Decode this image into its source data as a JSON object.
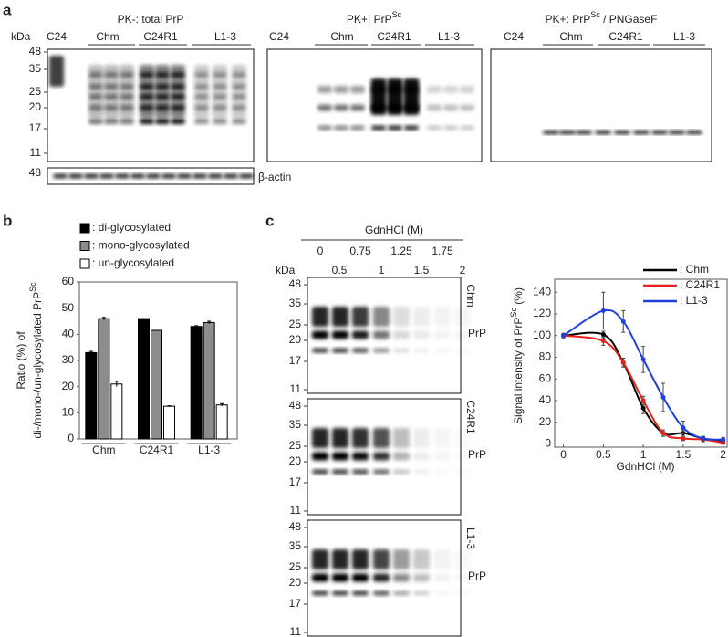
{
  "panel_a": {
    "label": "a",
    "kda": "kDa",
    "markers": [
      "48",
      "35",
      "25",
      "20",
      "17",
      "11"
    ],
    "blots": [
      {
        "title": "PK-: total PrP",
        "lanes": [
          "C24",
          "Chm",
          "C24R1",
          "L1-3"
        ]
      },
      {
        "title": "PK+: PrP",
        "title_sup": "Sc",
        "lanes": [
          "C24",
          "Chm",
          "C24R1",
          "L1-3"
        ]
      },
      {
        "title": "PK+: PrP",
        "title_sup": "Sc",
        "title_end": " / PNGaseF",
        "lanes": [
          "C24",
          "Chm",
          "C24R1",
          "L1-3"
        ]
      }
    ],
    "actin": {
      "marker": "48",
      "label": "β-actin"
    }
  },
  "panel_b": {
    "label": "b",
    "chart_data": {
      "type": "bar",
      "y_label": "Ratio (%) of",
      "y_label_2": "di-/mono-/un-glycosylated PrP",
      "y_label_sup": "Sc",
      "categories": [
        "Chm",
        "C24R1",
        "L1-3"
      ],
      "series": [
        {
          "name": ": di-glycosylated",
          "color": "#000000",
          "values": [
            33,
            46,
            43
          ],
          "errors": [
            0.5,
            0,
            0.3
          ]
        },
        {
          "name": ": mono-glycosylated",
          "color": "#8c8c8c",
          "values": [
            46,
            41.5,
            44.5
          ],
          "errors": [
            0.5,
            0,
            0.5
          ]
        },
        {
          "name": ": un-glycosylated",
          "color": "#ffffff",
          "values": [
            21,
            12.5,
            13
          ],
          "errors": [
            1,
            0.2,
            0.5
          ]
        }
      ],
      "ylim": [
        0,
        60
      ],
      "yticks": [
        0,
        10,
        20,
        30,
        40,
        50,
        60
      ]
    }
  },
  "panel_c": {
    "label": "c",
    "gdn_label": "GdnHCl (M)",
    "kda": "kDa",
    "conc_top": [
      "0",
      "0.75",
      "1.25",
      "1.75"
    ],
    "conc_bottom": [
      "0.5",
      "1",
      "1.5",
      "2"
    ],
    "markers": [
      "48",
      "35",
      "25",
      "20",
      "17",
      "11"
    ],
    "blots": [
      {
        "strain": "Chm",
        "protein": "PrP"
      },
      {
        "strain": "C24R1",
        "protein": "PrP"
      },
      {
        "strain": "L1-3",
        "protein": "PrP"
      }
    ],
    "chart_data": {
      "type": "line",
      "y_label": "Signal intensity of PrP",
      "y_label_sup": "Sc",
      "y_label_end": " (%)",
      "x_label": "GdnHCl (M)",
      "x": [
        0,
        0.5,
        0.75,
        1,
        1.25,
        1.5,
        1.75,
        2
      ],
      "series": [
        {
          "name": ": Chm",
          "color": "#000000",
          "values": [
            100,
            101,
            75,
            33,
            10,
            10,
            5,
            3
          ],
          "errors": [
            2,
            3,
            4,
            5,
            3,
            3,
            2,
            2
          ]
        },
        {
          "name": ": C24R1",
          "color": "#e8231c",
          "values": [
            100,
            95,
            75,
            40,
            10,
            5,
            4,
            1
          ],
          "errors": [
            2,
            4,
            4,
            4,
            3,
            2,
            2,
            1
          ]
        },
        {
          "name": ": L1-3",
          "color": "#1f3fe0",
          "values": [
            100,
            123,
            113,
            78,
            43,
            15,
            5,
            4
          ],
          "errors": [
            2,
            17,
            10,
            12,
            13,
            6,
            2,
            2
          ]
        }
      ],
      "xlim": [
        -0.11,
        2.05
      ],
      "ylim": [
        -3,
        152
      ],
      "xticks": [
        0,
        0.5,
        1,
        1.5,
        2
      ],
      "yticks": [
        0,
        20,
        40,
        60,
        80,
        100,
        120,
        140
      ]
    }
  }
}
